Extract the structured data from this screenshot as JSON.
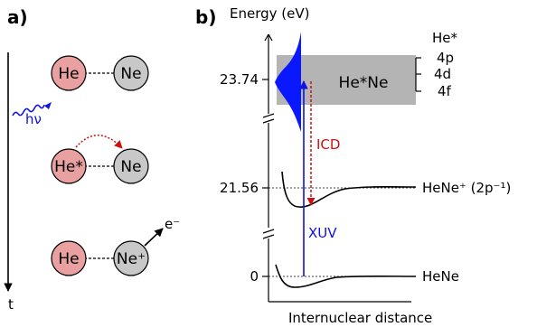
{
  "panel_a": {
    "label": "a)",
    "time_label": "t",
    "photon_label": "hν",
    "rows": [
      {
        "left": "He",
        "right": "Ne"
      },
      {
        "left": "He*",
        "right": "Ne"
      },
      {
        "left": "He",
        "right": "Ne⁺",
        "electron": "e⁻"
      }
    ]
  },
  "panel_b": {
    "label": "b)",
    "y_axis_label": "Energy (eV)",
    "x_axis_label": "Internuclear distance",
    "ticks": [
      "23.74",
      "21.56",
      "0"
    ],
    "box_label": "He*Ne",
    "state_header": "He*",
    "states": [
      "4p",
      "4d",
      "4f"
    ],
    "curves": [
      "HeNe⁺ (2p⁻¹)",
      "HeNe"
    ],
    "arrows": {
      "icd": "ICD",
      "xuv": "XUV"
    }
  },
  "colors": {
    "he": "#e8a0a0",
    "ne": "#c8c8c8",
    "box": "#b4b4b4",
    "xuv": "#1010e0",
    "icd": "#cc1010",
    "peak": "#0a18ff"
  }
}
